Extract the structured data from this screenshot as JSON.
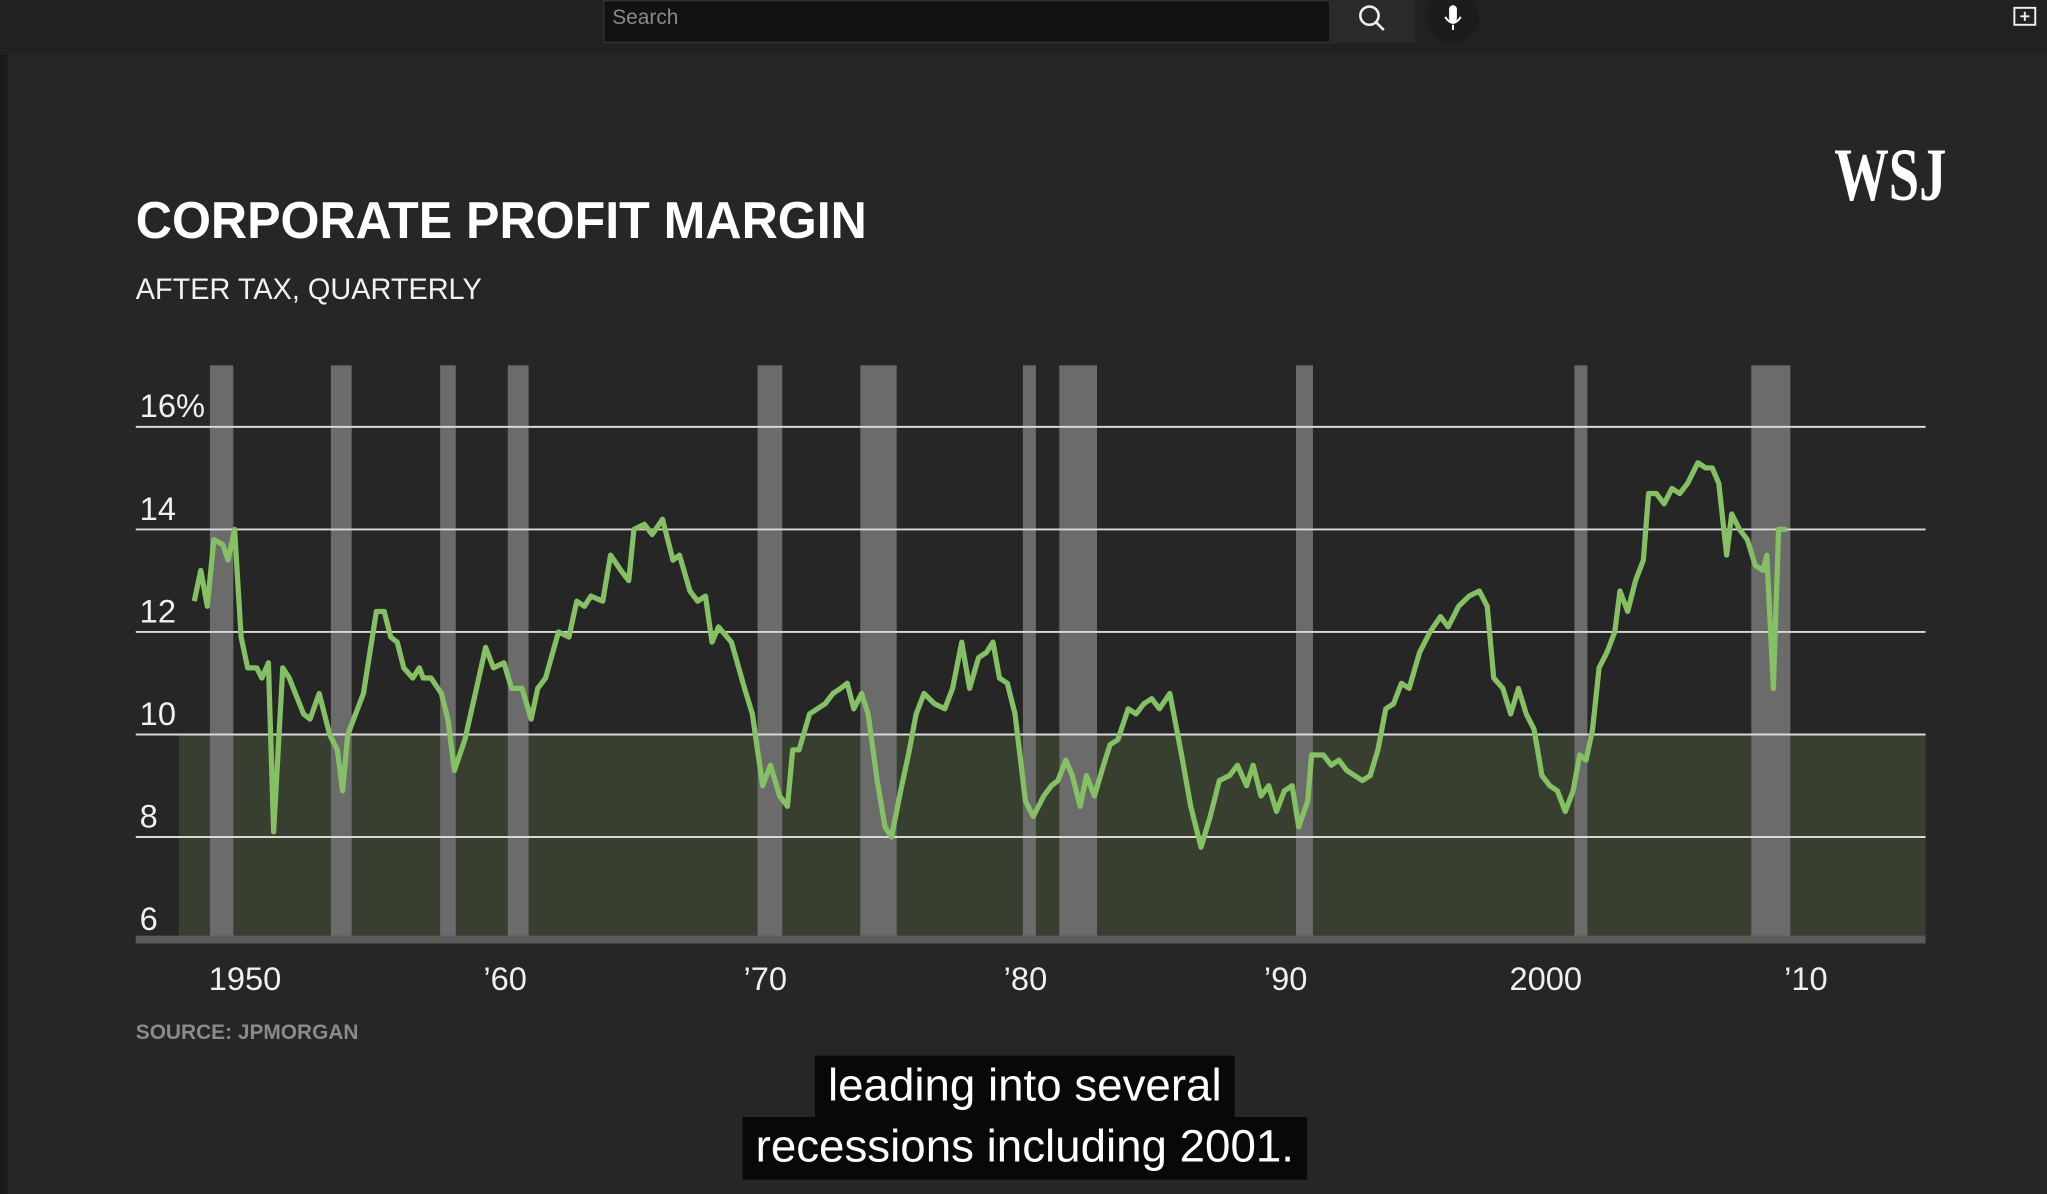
{
  "search_placeholder": "Search",
  "logo": "WSJ",
  "captions": [
    "leading into several",
    "recessions including 2001."
  ],
  "chart_data": {
    "type": "line",
    "title": "CORPORATE PROFIT MARGIN",
    "subtitle": "AFTER TAX, QUARTERLY",
    "source": "SOURCE: JPMORGAN",
    "xlim": [
      1945.8,
      2014.6
    ],
    "xticks": [
      1950,
      {
        "value": 1960,
        "label": "’60"
      },
      {
        "value": 1970,
        "label": "’70"
      },
      {
        "value": 1980,
        "label": "’80"
      },
      {
        "value": 1990,
        "label": "’90"
      },
      2000,
      {
        "value": 2010,
        "label": "’10"
      }
    ],
    "ylim": [
      6,
      17.2
    ],
    "yticks": [
      {
        "value": 16,
        "label": "16%"
      },
      14,
      12,
      10,
      8,
      6
    ],
    "grid": true,
    "shaded_ylim": [
      6,
      10
    ],
    "recessions": [
      [
        1948.65,
        1949.55
      ],
      [
        1953.3,
        1954.1
      ],
      [
        1957.5,
        1958.1
      ],
      [
        1960.1,
        1960.9
      ],
      [
        1969.7,
        1970.65
      ],
      [
        1973.65,
        1975.05
      ],
      [
        1979.9,
        1980.4
      ],
      [
        1981.3,
        1982.75
      ],
      [
        1990.4,
        1991.05
      ],
      [
        2001.1,
        2001.6
      ],
      [
        2007.9,
        2009.4
      ]
    ],
    "series": [
      {
        "color": "#86c064",
        "x": [
          1948.05,
          1948.3,
          1948.55,
          1948.8,
          1949.15,
          1949.35,
          1949.6,
          1949.85,
          1950.1,
          1950.45,
          1950.65,
          1950.9,
          1951.1,
          1951.45,
          1951.7,
          1952.25,
          1952.5,
          1952.85,
          1953.25,
          1953.55,
          1953.75,
          1953.95,
          1954.55,
          1955.05,
          1955.35,
          1955.6,
          1955.85,
          1956.1,
          1956.45,
          1956.7,
          1956.85,
          1957.15,
          1957.55,
          1957.8,
          1958.05,
          1958.45,
          1958.9,
          1959.25,
          1959.55,
          1959.95,
          1960.25,
          1960.65,
          1961.0,
          1961.25,
          1961.55,
          1962.05,
          1962.45,
          1962.75,
          1963.05,
          1963.3,
          1963.75,
          1964.05,
          1964.45,
          1964.75,
          1964.95,
          1965.35,
          1965.65,
          1966.05,
          1966.45,
          1966.7,
          1967.1,
          1967.4,
          1967.7,
          1967.95,
          1968.2,
          1968.7,
          1969.2,
          1969.5,
          1969.9,
          1970.2,
          1970.55,
          1970.85,
          1971.05,
          1971.3,
          1971.7,
          1972.0,
          1972.3,
          1972.6,
          1972.9,
          1973.15,
          1973.4,
          1973.7,
          1973.95,
          1974.3,
          1974.6,
          1974.85,
          1975.2,
          1975.5,
          1975.8,
          1976.1,
          1976.5,
          1976.9,
          1977.2,
          1977.55,
          1977.85,
          1978.2,
          1978.5,
          1978.75,
          1979.0,
          1979.3,
          1979.6,
          1980.0,
          1980.3,
          1980.7,
          1981.0,
          1981.25,
          1981.55,
          1981.8,
          1982.1,
          1982.35,
          1982.65,
          1983.0,
          1983.25,
          1983.55,
          1983.95,
          1984.25,
          1984.55,
          1984.85,
          1985.15,
          1985.55,
          1986.0,
          1986.35,
          1986.75,
          1987.1,
          1987.45,
          1987.85,
          1988.15,
          1988.5,
          1988.75,
          1989.05,
          1989.35,
          1989.65,
          1989.95,
          1990.25,
          1990.5,
          1990.85,
          1991.0,
          1991.45,
          1991.75,
          1992.05,
          1992.35,
          1992.65,
          1992.95,
          1993.25,
          1993.55,
          1993.85,
          1994.15,
          1994.45,
          1994.75,
          1995.15,
          1995.55,
          1995.95,
          1996.25,
          1996.65,
          1997.05,
          1997.45,
          1997.75,
          1998.0,
          1998.35,
          1998.65,
          1998.95,
          1999.25,
          1999.55,
          1999.85,
          2000.15,
          2000.45,
          2000.75,
          2001.05,
          2001.3,
          2001.55,
          2001.8,
          2002.05,
          2002.35,
          2002.65,
          2002.85,
          2003.15,
          2003.45,
          2003.75,
          2003.95,
          2004.25,
          2004.55,
          2004.85,
          2005.15,
          2005.45,
          2005.85,
          2006.15,
          2006.4,
          2006.65,
          2006.95,
          2007.15,
          2007.45,
          2007.75,
          2008.05,
          2008.35,
          2008.5,
          2008.75,
          2008.95,
          2009.25
        ],
        "values": [
          12.6,
          13.2,
          12.5,
          13.8,
          13.7,
          13.4,
          14.0,
          11.9,
          11.3,
          11.3,
          11.1,
          11.4,
          8.1,
          11.3,
          11.1,
          10.4,
          10.3,
          10.8,
          10.0,
          9.7,
          8.9,
          10.0,
          10.8,
          12.4,
          12.4,
          11.9,
          11.8,
          11.3,
          11.1,
          11.3,
          11.1,
          11.1,
          10.8,
          10.3,
          9.3,
          9.9,
          10.9,
          11.7,
          11.3,
          11.4,
          10.9,
          10.9,
          10.3,
          10.9,
          11.1,
          12.0,
          11.9,
          12.6,
          12.5,
          12.7,
          12.6,
          13.5,
          13.2,
          13.0,
          14.0,
          14.1,
          13.9,
          14.2,
          13.4,
          13.5,
          12.8,
          12.6,
          12.7,
          11.8,
          12.1,
          11.8,
          10.9,
          10.4,
          9.0,
          9.4,
          8.8,
          8.6,
          9.7,
          9.7,
          10.4,
          10.5,
          10.6,
          10.8,
          10.9,
          11.0,
          10.5,
          10.8,
          10.4,
          9.1,
          8.2,
          8.0,
          8.9,
          9.6,
          10.4,
          10.8,
          10.6,
          10.5,
          10.9,
          11.8,
          10.9,
          11.5,
          11.6,
          11.8,
          11.1,
          11.0,
          10.4,
          8.7,
          8.4,
          8.8,
          9.0,
          9.1,
          9.5,
          9.2,
          8.6,
          9.2,
          8.8,
          9.4,
          9.8,
          9.9,
          10.5,
          10.4,
          10.6,
          10.7,
          10.5,
          10.8,
          9.6,
          8.6,
          7.8,
          8.4,
          9.1,
          9.2,
          9.4,
          9.0,
          9.4,
          8.8,
          9.0,
          8.5,
          8.9,
          9.0,
          8.2,
          8.7,
          9.6,
          9.6,
          9.4,
          9.5,
          9.3,
          9.2,
          9.1,
          9.2,
          9.7,
          10.5,
          10.6,
          11.0,
          10.9,
          11.6,
          12.0,
          12.3,
          12.1,
          12.5,
          12.7,
          12.8,
          12.5,
          11.1,
          10.9,
          10.4,
          10.9,
          10.4,
          10.1,
          9.2,
          9.0,
          8.9,
          8.5,
          8.9,
          9.6,
          9.5,
          10.1,
          11.3,
          11.6,
          12.0,
          12.8,
          12.4,
          13.0,
          13.4,
          14.7,
          14.7,
          14.5,
          14.8,
          14.7,
          14.9,
          15.3,
          15.2,
          15.2,
          14.9,
          13.5,
          14.3,
          14.0,
          13.8,
          13.3,
          13.2,
          13.5,
          10.9,
          14.0,
          14.0
        ]
      }
    ]
  }
}
